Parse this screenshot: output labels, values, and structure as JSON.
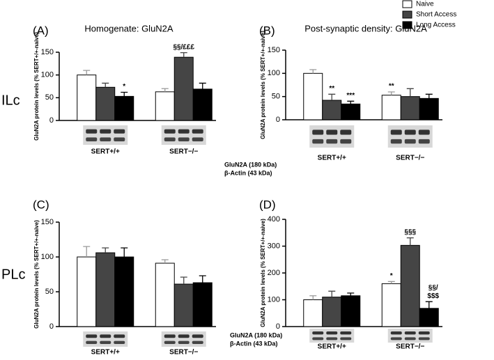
{
  "row_labels": [
    "ILc",
    "PLc"
  ],
  "chart_data": [
    {
      "type": "bar",
      "panel_label": "(A)",
      "title": "Homogenate: GluN2A",
      "ylabel": "GluN2A protein levels (% SERT+/+-naive)",
      "categories": [
        "SERT+/+",
        "SERT−/−"
      ],
      "series": [
        {
          "name": "Naive",
          "color": "#ffffff",
          "values": [
            100,
            63
          ],
          "errors": [
            10,
            7
          ],
          "annotations": [
            null,
            null
          ]
        },
        {
          "name": "Short Access",
          "color": "#454545",
          "values": [
            73,
            139
          ],
          "errors": [
            9,
            10
          ],
          "annotations": [
            null,
            "§§/£££"
          ]
        },
        {
          "name": "Long Access",
          "color": "#000000",
          "values": [
            53,
            69
          ],
          "errors": [
            9,
            13
          ],
          "annotations": [
            "*",
            null
          ]
        }
      ],
      "ylim": [
        0,
        150
      ],
      "yticks": [
        0,
        50,
        100,
        150
      ],
      "blot_labels": [
        "GluN2A (180 kDa)",
        "β-Actin (43 kDa)"
      ]
    },
    {
      "type": "bar",
      "panel_label": "(B)",
      "title": "Post-synaptic density: GluN2A",
      "ylabel": "GluN2A protein levels (% SERT+/+-naive)",
      "categories": [
        "SERT+/+",
        "SERT−/−"
      ],
      "series": [
        {
          "name": "Naive",
          "color": "#ffffff",
          "values": [
            100,
            53
          ],
          "errors": [
            8,
            7
          ],
          "annotations": [
            null,
            "**"
          ]
        },
        {
          "name": "Short Access",
          "color": "#454545",
          "values": [
            42,
            50
          ],
          "errors": [
            13,
            17
          ],
          "annotations": [
            "**",
            null
          ]
        },
        {
          "name": "Long Access",
          "color": "#000000",
          "values": [
            34,
            46
          ],
          "errors": [
            6,
            9
          ],
          "annotations": [
            "***",
            null
          ]
        }
      ],
      "ylim": [
        0,
        150
      ],
      "yticks": [
        0,
        50,
        100,
        150
      ]
    },
    {
      "type": "bar",
      "panel_label": "(C)",
      "ylabel": "GluN2A protein levels (% SERT+/+-naive)",
      "categories": [
        "SERT+/+",
        "SERT−/−"
      ],
      "series": [
        {
          "name": "Naive",
          "color": "#ffffff",
          "values": [
            100,
            91
          ],
          "errors": [
            15,
            5
          ],
          "annotations": [
            null,
            null
          ]
        },
        {
          "name": "Short Access",
          "color": "#454545",
          "values": [
            106,
            61
          ],
          "errors": [
            7,
            10
          ],
          "annotations": [
            null,
            null
          ]
        },
        {
          "name": "Long Access",
          "color": "#000000",
          "values": [
            100,
            63
          ],
          "errors": [
            13,
            10
          ],
          "annotations": [
            null,
            null
          ]
        }
      ],
      "ylim": [
        0,
        150
      ],
      "yticks": [
        0,
        50,
        100,
        150
      ]
    },
    {
      "type": "bar",
      "panel_label": "(D)",
      "ylabel": "GluN2A protein levels (% SERT+/+-naive)",
      "categories": [
        "SERT+/+",
        "SERT−/−"
      ],
      "series": [
        {
          "name": "Naive",
          "color": "#ffffff",
          "values": [
            100,
            160
          ],
          "errors": [
            15,
            8
          ],
          "annotations": [
            null,
            "*"
          ]
        },
        {
          "name": "Short Access",
          "color": "#454545",
          "values": [
            110,
            303
          ],
          "errors": [
            22,
            28
          ],
          "annotations": [
            null,
            "§§§"
          ]
        },
        {
          "name": "Long Access",
          "color": "#000000",
          "values": [
            115,
            68
          ],
          "errors": [
            10,
            25
          ],
          "annotations": [
            null,
            [
              "§§/",
              "$$$"
            ]
          ]
        }
      ],
      "ylim": [
        0,
        400
      ],
      "yticks": [
        0,
        100,
        200,
        300,
        400
      ],
      "blot_labels": [
        "GluN2A (180 kDa)",
        "β-Actin (43 kDa)"
      ]
    }
  ]
}
